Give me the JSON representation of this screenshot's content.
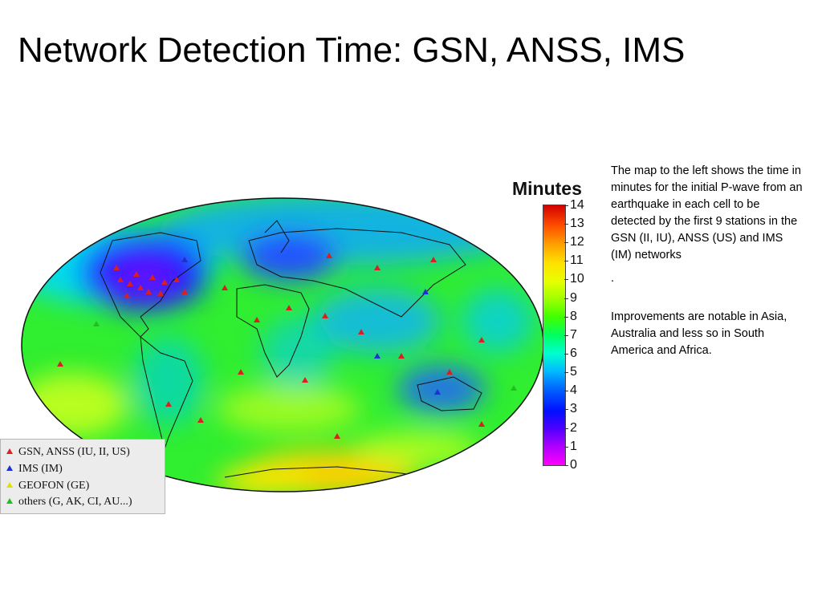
{
  "title": "Network Detection Time: GSN, ANSS, IMS",
  "colorbar": {
    "title": "Minutes",
    "ticks": [
      "14",
      "13",
      "12",
      "11",
      "10",
      "9",
      "8",
      "7",
      "6",
      "5",
      "4",
      "3",
      "2",
      "1",
      "0"
    ],
    "colors": {
      "max": "#d40000",
      "mid": "#40ff00",
      "min": "#ff00ff"
    }
  },
  "legend": {
    "items": [
      {
        "label": "GSN, ANSS (IU, II, US)",
        "color": "#e02020",
        "icon": "triangle-icon"
      },
      {
        "label": "IMS (IM)",
        "color": "#2030d0",
        "icon": "triangle-icon"
      },
      {
        "label": "GEOFON (GE)",
        "color": "#e6e000",
        "icon": "triangle-icon"
      },
      {
        "label": "others (G, AK, CI, AU...)",
        "color": "#20c020",
        "icon": "triangle-icon"
      }
    ]
  },
  "description": {
    "paragraph1": "The map to the left shows the time in minutes for the initial P-wave from an earthquake in each cell  to be detected by the first 9 stations in the GSN (II, IU), ANSS (US) and IMS (IM) networks",
    "dot": ".",
    "paragraph2": "Improvements are notable in Asia, Australia and less so in South America and Africa."
  }
}
